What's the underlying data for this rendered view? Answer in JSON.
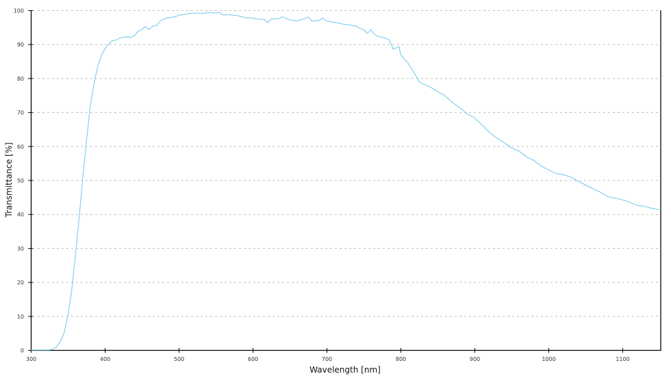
{
  "chart_data": {
    "type": "line",
    "title": "",
    "xlabel": "Wavelength [nm]",
    "ylabel": "Transmittance [%]",
    "xlim": [
      300,
      1150
    ],
    "ylim": [
      0,
      100
    ],
    "xticks": [
      300,
      400,
      500,
      600,
      700,
      800,
      900,
      1000,
      1100
    ],
    "yticks": [
      0,
      10,
      20,
      30,
      40,
      50,
      60,
      70,
      80,
      90,
      100
    ],
    "grid": "horizontal dashed",
    "colors": {
      "line": "#6cc6ec",
      "grid": "#bbbbbb",
      "axis": "#000000"
    },
    "series": [
      {
        "x": [
          300,
          310,
          320,
          325,
          330,
          335,
          340,
          345,
          350,
          355,
          360,
          365,
          370,
          375,
          380,
          385,
          390,
          395,
          400,
          405,
          410,
          415,
          420,
          425,
          430,
          435,
          440,
          445,
          450,
          455,
          460,
          465,
          470,
          475,
          480,
          485,
          490,
          500,
          510,
          520,
          530,
          540,
          550,
          555,
          560,
          570,
          580,
          590,
          600,
          610,
          615,
          620,
          625,
          635,
          640,
          650,
          660,
          670,
          675,
          680,
          690,
          695,
          700,
          710,
          720,
          730,
          740,
          745,
          750,
          755,
          760,
          765,
          770,
          780,
          785,
          790,
          795,
          798,
          800,
          810,
          820,
          825,
          830,
          840,
          850,
          860,
          870,
          880,
          890,
          900,
          910,
          920,
          930,
          940,
          950,
          960,
          970,
          980,
          990,
          1000,
          1010,
          1020,
          1030,
          1040,
          1050,
          1060,
          1070,
          1080,
          1090,
          1100,
          1110,
          1120,
          1130,
          1140,
          1150
        ],
        "y": [
          0,
          0,
          0,
          0,
          0.3,
          1,
          2.5,
          5,
          10,
          17,
          27,
          38,
          50,
          61,
          71,
          78,
          83,
          86.5,
          88.5,
          90,
          91,
          91.2,
          91.8,
          92,
          92.2,
          92,
          92.5,
          93.8,
          94.3,
          95.2,
          94.3,
          95.3,
          95.5,
          96.8,
          97.4,
          97.8,
          97.8,
          98.5,
          98.9,
          99.2,
          99.1,
          99.3,
          99.2,
          99.3,
          98.6,
          98.7,
          98.4,
          97.8,
          97.7,
          97.3,
          97.4,
          96.3,
          97.4,
          97.5,
          98.1,
          97.2,
          96.8,
          97.5,
          98,
          96.8,
          97,
          97.7,
          96.8,
          96.5,
          96,
          95.7,
          95.3,
          94.6,
          94.3,
          93.2,
          94.3,
          92.8,
          92.3,
          91.8,
          91.2,
          88.6,
          89,
          89.3,
          87,
          84.5,
          81,
          79,
          78.4,
          77.4,
          76.1,
          74.8,
          72.9,
          71.3,
          69.5,
          68.4,
          66.3,
          64.1,
          62.4,
          61,
          59.5,
          58.6,
          56.9,
          55.8,
          54.2,
          53,
          52,
          51.6,
          50.9,
          49.7,
          48.6,
          47.5,
          46.5,
          45.2,
          44.7,
          44.2,
          43.5,
          42.6,
          42.3,
          41.7,
          41.3
        ]
      }
    ]
  }
}
